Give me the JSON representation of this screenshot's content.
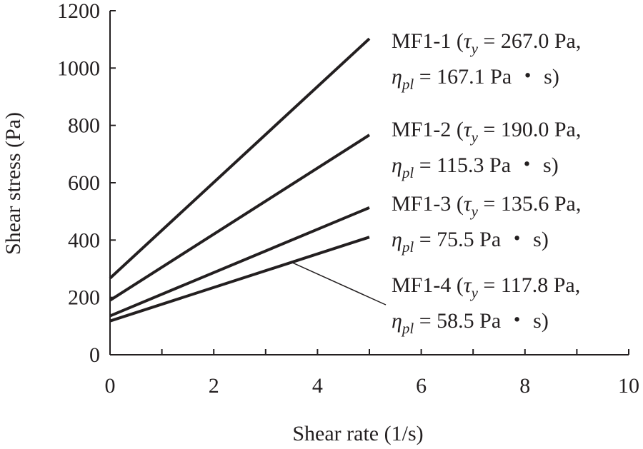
{
  "chart_data": {
    "type": "line",
    "xlabel": "Shear rate (1/s)",
    "ylabel": "Shear stress (Pa)",
    "xlim": [
      0,
      10
    ],
    "ylim": [
      0,
      1200
    ],
    "xticks": [
      0,
      2,
      4,
      6,
      8,
      10
    ],
    "yticks": [
      0,
      200,
      400,
      600,
      800,
      1000,
      1200
    ],
    "grid": false,
    "legend": "none",
    "series": [
      {
        "name": "MF1-1",
        "x": [
          0,
          5
        ],
        "y": [
          267.0,
          1102.5
        ],
        "tau_y": "267.0 Pa",
        "eta_pl": "167.1 Pa"
      },
      {
        "name": "MF1-2",
        "x": [
          0,
          5
        ],
        "y": [
          190.0,
          766.5
        ],
        "tau_y": "190.0 Pa",
        "eta_pl": "115.3 Pa"
      },
      {
        "name": "MF1-3",
        "x": [
          0,
          5
        ],
        "y": [
          135.6,
          513.1
        ],
        "tau_y": "135.6 Pa",
        "eta_pl": "75.5 Pa"
      },
      {
        "name": "MF1-4",
        "x": [
          0,
          5
        ],
        "y": [
          117.8,
          410.3
        ],
        "tau_y": "117.8 Pa",
        "eta_pl": "58.5 Pa"
      }
    ],
    "annotation_symbols": {
      "tau": "τ",
      "tau_sub": "y",
      "eta": "η",
      "eta_sub": "pl",
      "seconds_unit": "・ s"
    }
  }
}
